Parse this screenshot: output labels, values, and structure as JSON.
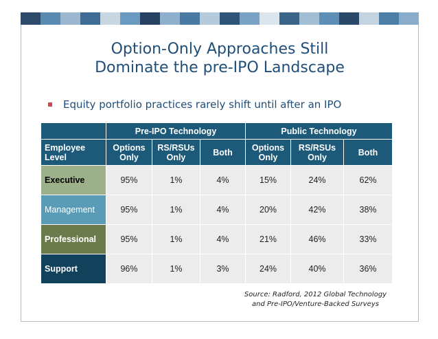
{
  "slide": {
    "title_line1": "Option-Only Approaches Still",
    "title_line2": "Dominate the pre-IPO Landscape",
    "bullet": "Equity portfolio practices rarely shift until after an IPO",
    "colors": {
      "title": "#1f4e79",
      "header": "#1d5a7a",
      "bullet": "#c0504d"
    }
  },
  "table": {
    "group_headers": [
      "Pre-IPO Technology",
      "Public Technology"
    ],
    "level_header_line1": "Employee",
    "level_header_line2": "Level",
    "columns": [
      {
        "line1": "Options",
        "line2": "Only"
      },
      {
        "line1": "RS/RSUs",
        "line2": "Only"
      },
      {
        "line1": "Both",
        "line2": ""
      },
      {
        "line1": "Options",
        "line2": "Only"
      },
      {
        "line1": "RS/RSUs",
        "line2": "Only"
      },
      {
        "line1": "Both",
        "line2": ""
      }
    ],
    "rows": [
      {
        "level": "Executive",
        "values": [
          "95%",
          "1%",
          "4%",
          "15%",
          "24%",
          "62%"
        ]
      },
      {
        "level": "Management",
        "values": [
          "95%",
          "1%",
          "4%",
          "20%",
          "42%",
          "38%"
        ]
      },
      {
        "level": "Professional",
        "values": [
          "95%",
          "1%",
          "4%",
          "21%",
          "46%",
          "33%"
        ]
      },
      {
        "level": "Support",
        "values": [
          "96%",
          "1%",
          "3%",
          "24%",
          "40%",
          "36%"
        ]
      }
    ]
  },
  "source": {
    "line1": "Source: Radford, 2012 Global Technology",
    "line2": "and Pre-IPO/Venture-Backed Surveys"
  }
}
